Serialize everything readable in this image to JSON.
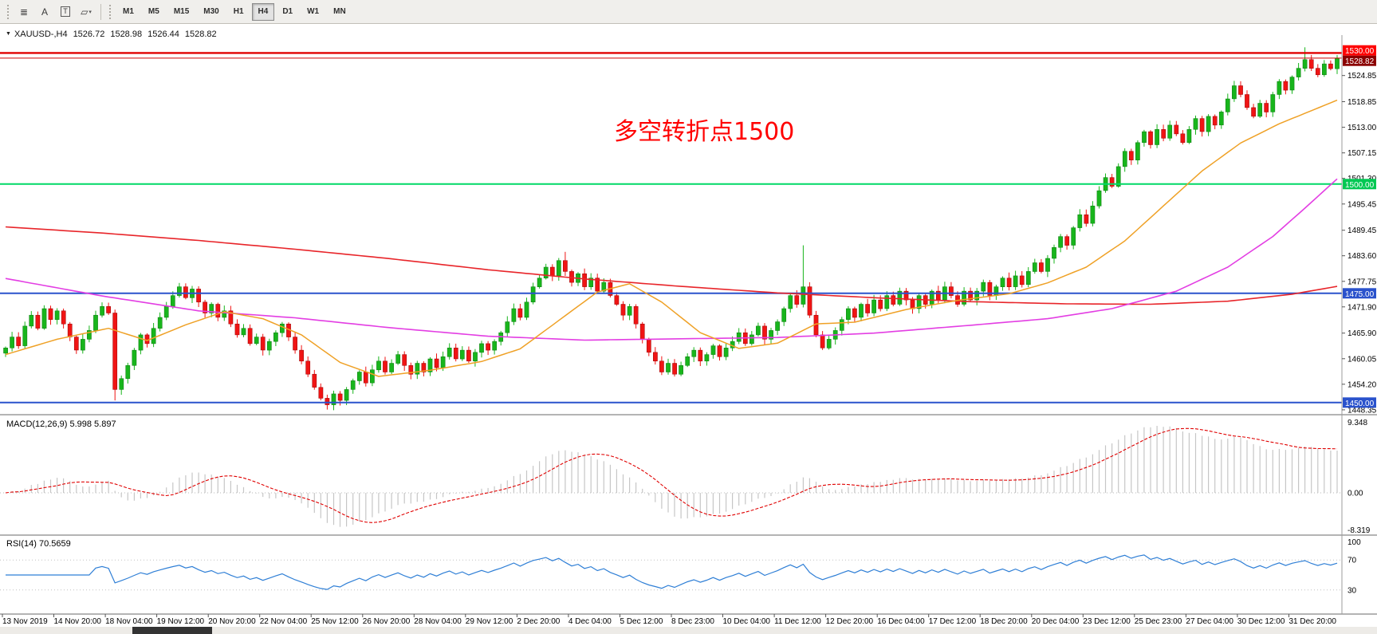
{
  "toolbar": {
    "tools": [
      {
        "name": "chart-lines-icon",
        "glyph": "≣"
      },
      {
        "name": "text-label-icon",
        "glyph": "A"
      },
      {
        "name": "text-tool-icon",
        "glyph": "T",
        "boxed": true
      },
      {
        "name": "shapes-icon",
        "glyph": "▱",
        "caret": true
      }
    ],
    "timeframes": [
      "M1",
      "M5",
      "M15",
      "M30",
      "H1",
      "H4",
      "D1",
      "W1",
      "MN"
    ],
    "active_timeframe": "H4"
  },
  "chart_header": {
    "dropdown": "▼",
    "symbol": "XAUUSD-,H4",
    "open": "1526.72",
    "high": "1528.98",
    "low": "1526.44",
    "close": "1528.82"
  },
  "annotation": {
    "text": "多空转折点1500",
    "color": "#ff0000"
  },
  "price_axis": {
    "ticks": [
      1524.85,
      1518.85,
      1513.0,
      1507.15,
      1501.3,
      1495.45,
      1489.45,
      1483.6,
      1477.75,
      1471.9,
      1465.9,
      1460.05,
      1454.2,
      1448.35
    ],
    "tags": [
      {
        "label": "1530.00",
        "price": 1530.0,
        "color": "#fe0000"
      },
      {
        "label": "1528.82",
        "price": 1528.82,
        "color": "#8b0000"
      },
      {
        "label": "1500.00",
        "price": 1500.0,
        "color": "#00c853"
      },
      {
        "label": "1475.00",
        "price": 1475.0,
        "color": "#2a52cc"
      },
      {
        "label": "1450.00",
        "price": 1450.0,
        "color": "#2a52cc"
      }
    ]
  },
  "hlines": [
    {
      "price": 1530.0,
      "color": "#e00000",
      "width": 2.4
    },
    {
      "price": 1528.82,
      "color": "#cc0000",
      "width": 1
    },
    {
      "price": 1500.0,
      "color": "#00d966",
      "width": 2
    },
    {
      "price": 1475.0,
      "color": "#2a52cc",
      "width": 2
    },
    {
      "price": 1450.0,
      "color": "#2a52cc",
      "width": 2
    }
  ],
  "macd_panel": {
    "label": "MACD(12,26,9) 5.998 5.897",
    "axis_top": "9.348",
    "axis_zero": "0.00",
    "axis_bottom": "-8.319",
    "fast": 12,
    "slow": 26,
    "smoothing": 9,
    "hist_color": "#c6c6c6",
    "signal_color": "#e00000"
  },
  "rsi_panel": {
    "label": "RSI(14) 70.5659",
    "period": 14,
    "levels": [
      100,
      70,
      30
    ],
    "color": "#2f7fd6"
  },
  "time_axis": [
    "13 Nov 2019",
    "14 Nov 20:00",
    "18 Nov 04:00",
    "19 Nov 12:00",
    "20 Nov 20:00",
    "22 Nov 04:00",
    "25 Nov 12:00",
    "26 Nov 20:00",
    "28 Nov 04:00",
    "29 Nov 12:00",
    "2 Dec 20:00",
    "4 Dec 04:00",
    "5 Dec 12:00",
    "8 Dec 23:00",
    "10 Dec 04:00",
    "11 Dec 12:00",
    "12 Dec 20:00",
    "16 Dec 04:00",
    "17 Dec 12:00",
    "18 Dec 20:00",
    "20 Dec 04:00",
    "23 Dec 12:00",
    "25 Dec 23:00",
    "27 Dec 04:00",
    "30 Dec 12:00",
    "31 Dec 20:00"
  ],
  "chart_data": {
    "type": "candlestick",
    "symbol": "XAUUSD",
    "timeframe": "H4",
    "annotation": "多空转折点1500",
    "key_levels": [
      1530.0,
      1500.0,
      1475.0,
      1450.0
    ],
    "current_price": 1528.82,
    "y_range": [
      1447.6,
      1533.0
    ],
    "bars_per_label": 8,
    "closes": [
      1462.5,
      1465,
      1463,
      1467.5,
      1470,
      1467,
      1471.5,
      1469,
      1471,
      1468,
      1465,
      1462,
      1464.5,
      1466.5,
      1470,
      1472,
      1470.5,
      1453,
      1455.5,
      1458.5,
      1462,
      1465.5,
      1463.5,
      1467,
      1469.5,
      1472,
      1474.5,
      1476.5,
      1474,
      1476,
      1473,
      1470.5,
      1472.5,
      1469.5,
      1471,
      1468,
      1465.5,
      1467,
      1463.5,
      1465,
      1462,
      1464,
      1466,
      1468,
      1465,
      1462,
      1459.5,
      1456.5,
      1453.5,
      1451,
      1449.5,
      1452,
      1450.5,
      1453,
      1455,
      1457,
      1454.5,
      1457.5,
      1459.5,
      1457,
      1459,
      1461,
      1458.5,
      1456.5,
      1459,
      1457,
      1460,
      1458,
      1460.5,
      1462.5,
      1460,
      1462,
      1459.5,
      1461.5,
      1463.5,
      1462,
      1464,
      1466,
      1468.5,
      1471.5,
      1469.5,
      1473,
      1476.5,
      1478.5,
      1481,
      1479,
      1482.5,
      1480,
      1477.5,
      1479.5,
      1476.5,
      1478.5,
      1475.5,
      1477.5,
      1474.5,
      1472.5,
      1470,
      1472,
      1468,
      1464.5,
      1461.5,
      1459.5,
      1457,
      1459,
      1456.5,
      1458.5,
      1460.5,
      1462,
      1459.5,
      1461,
      1463,
      1460.5,
      1462.5,
      1464,
      1466,
      1463.5,
      1465.5,
      1467.5,
      1464.5,
      1466.5,
      1468.5,
      1471.5,
      1474.5,
      1472.5,
      1476.5,
      1470,
      1465.5,
      1462.5,
      1464.5,
      1466.5,
      1469,
      1471.5,
      1469.5,
      1472.5,
      1470.5,
      1473.5,
      1471.5,
      1474.5,
      1472.5,
      1475.5,
      1473.5,
      1471.5,
      1474.5,
      1472.5,
      1475.5,
      1473.5,
      1476.5,
      1474.5,
      1472.5,
      1475.5,
      1473.5,
      1475.5,
      1477.5,
      1474.5,
      1476.5,
      1478.5,
      1476.5,
      1479,
      1477,
      1480,
      1482,
      1480,
      1483,
      1485.5,
      1488,
      1486,
      1490,
      1493,
      1491,
      1495,
      1498.5,
      1501.5,
      1499.5,
      1504,
      1507.5,
      1505.5,
      1509.5,
      1512,
      1509,
      1512.5,
      1510.5,
      1513.5,
      1511.5,
      1509.5,
      1512.5,
      1515,
      1512,
      1515.5,
      1513.5,
      1516.5,
      1519.5,
      1522.5,
      1520.5,
      1517.5,
      1515.5,
      1518.5,
      1516.5,
      1520.5,
      1523.5,
      1521.5,
      1524.5,
      1526.5,
      1528.5,
      1526.5,
      1525,
      1527.5,
      1526.4,
      1528.8
    ],
    "wick_overrides": {
      "17": {
        "l": 1450.5
      },
      "50": {
        "l": 1448.4
      },
      "87": {
        "h": 1484.5
      },
      "124": {
        "h": 1486.0
      },
      "202": {
        "h": 1531.3
      }
    },
    "up_color": "#18b51c",
    "down_color": "#f01414",
    "ma_lines": {
      "red": {
        "color": "#e8252a",
        "width": 1.6,
        "points": [
          [
            0,
            1490.2
          ],
          [
            15,
            1488.8
          ],
          [
            30,
            1487.1
          ],
          [
            45,
            1485.1
          ],
          [
            60,
            1482.9
          ],
          [
            75,
            1480.4
          ],
          [
            90,
            1478.3
          ],
          [
            105,
            1476.6
          ],
          [
            120,
            1475.1
          ],
          [
            135,
            1474
          ],
          [
            150,
            1473.1
          ],
          [
            165,
            1472.6
          ],
          [
            178,
            1472.5
          ],
          [
            190,
            1473.2
          ],
          [
            200,
            1474.8
          ],
          [
            207,
            1476.6
          ]
        ]
      },
      "magenta": {
        "color": "#e33ee3",
        "width": 1.6,
        "points": [
          [
            0,
            1478.4
          ],
          [
            15,
            1474.4
          ],
          [
            30,
            1471
          ],
          [
            45,
            1469.4
          ],
          [
            60,
            1467.1
          ],
          [
            75,
            1465.2
          ],
          [
            90,
            1464.3
          ],
          [
            105,
            1464.6
          ],
          [
            120,
            1464.9
          ],
          [
            135,
            1465.9
          ],
          [
            150,
            1467.7
          ],
          [
            162,
            1469.2
          ],
          [
            172,
            1471.5
          ],
          [
            182,
            1475.5
          ],
          [
            190,
            1481
          ],
          [
            197,
            1488
          ],
          [
            202,
            1494.5
          ],
          [
            207,
            1501.2
          ]
        ]
      },
      "orange": {
        "color": "#efa126",
        "width": 1.5,
        "points": [
          [
            0,
            1461
          ],
          [
            8,
            1464.5
          ],
          [
            16,
            1467
          ],
          [
            22,
            1464.2
          ],
          [
            28,
            1467.8
          ],
          [
            34,
            1470.8
          ],
          [
            40,
            1469.2
          ],
          [
            46,
            1465.5
          ],
          [
            52,
            1459.2
          ],
          [
            58,
            1456
          ],
          [
            66,
            1457.4
          ],
          [
            74,
            1459.4
          ],
          [
            80,
            1462.3
          ],
          [
            86,
            1468.8
          ],
          [
            92,
            1475.3
          ],
          [
            97,
            1477.2
          ],
          [
            102,
            1473
          ],
          [
            108,
            1466
          ],
          [
            114,
            1462.4
          ],
          [
            120,
            1463.6
          ],
          [
            126,
            1468
          ],
          [
            132,
            1468.4
          ],
          [
            140,
            1471.3
          ],
          [
            148,
            1473.4
          ],
          [
            156,
            1474.9
          ],
          [
            162,
            1477.4
          ],
          [
            168,
            1481
          ],
          [
            174,
            1487
          ],
          [
            180,
            1495
          ],
          [
            186,
            1503
          ],
          [
            192,
            1509.4
          ],
          [
            198,
            1513.8
          ],
          [
            203,
            1516.8
          ],
          [
            207,
            1519.2
          ]
        ]
      }
    }
  }
}
